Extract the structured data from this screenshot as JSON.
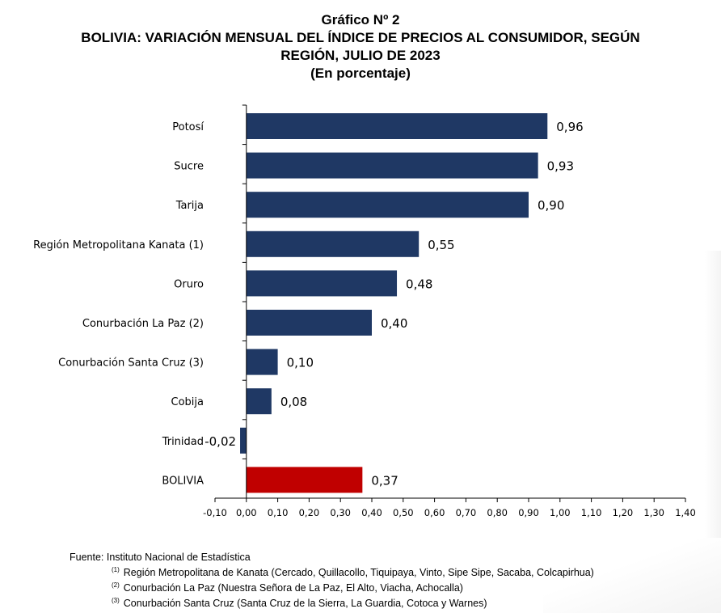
{
  "title": {
    "line1": "Gráfico Nº 2",
    "line2": "BOLIVIA: VARIACIÓN MENSUAL DEL ÍNDICE DE PRECIOS AL CONSUMIDOR, SEGÚN",
    "line3": "REGIÓN, JULIO DE 2023",
    "line4": "(En porcentaje)"
  },
  "chart_data": {
    "type": "bar",
    "orientation": "horizontal",
    "categories": [
      "Potosí",
      "Sucre",
      "Tarija",
      "Región Metropolitana Kanata (1)",
      "Oruro",
      "Conurbación La Paz (2)",
      "Conurbación Santa Cruz (3)",
      "Cobija",
      "Trinidad",
      "BOLIVIA"
    ],
    "values": [
      0.96,
      0.93,
      0.9,
      0.55,
      0.48,
      0.4,
      0.1,
      0.08,
      -0.02,
      0.37
    ],
    "value_labels": [
      "0,96",
      "0,93",
      "0,90",
      "0,55",
      "0,48",
      "0,40",
      "0,10",
      "0,08",
      "-0,02",
      "0,37"
    ],
    "bar_colors": [
      "#1f3864",
      "#1f3864",
      "#1f3864",
      "#1f3864",
      "#1f3864",
      "#1f3864",
      "#1f3864",
      "#1f3864",
      "#1f3864",
      "#c00000"
    ],
    "xlim": [
      -0.1,
      1.4
    ],
    "x_ticks": [
      -0.1,
      0.0,
      0.1,
      0.2,
      0.3,
      0.4,
      0.5,
      0.6,
      0.7,
      0.8,
      0.9,
      1.0,
      1.1,
      1.2,
      1.3,
      1.4
    ],
    "x_tick_labels": [
      "-0,10",
      "0,00",
      "0,10",
      "0,20",
      "0,30",
      "0,40",
      "0,50",
      "0,60",
      "0,70",
      "0,80",
      "0,90",
      "1,00",
      "1,10",
      "1,20",
      "1,30",
      "1,40"
    ],
    "grid": false,
    "xlabel": "",
    "ylabel": ""
  },
  "footer": {
    "source": "Fuente: Instituto Nacional de Estadística",
    "notes": [
      {
        "mark": "(1)",
        "text": "Región Metropolitana de Kanata (Cercado, Quillacollo, Tiquipaya, Vinto, Sipe Sipe, Sacaba, Colcapirhua)"
      },
      {
        "mark": "(2)",
        "text": "Conurbación La Paz (Nuestra Señora de La Paz, El Alto, Viacha, Achocalla)"
      },
      {
        "mark": "(3)",
        "text": "Conurbación Santa Cruz (Santa Cruz de la Sierra, La Guardia, Cotoca y Warnes)"
      }
    ]
  }
}
